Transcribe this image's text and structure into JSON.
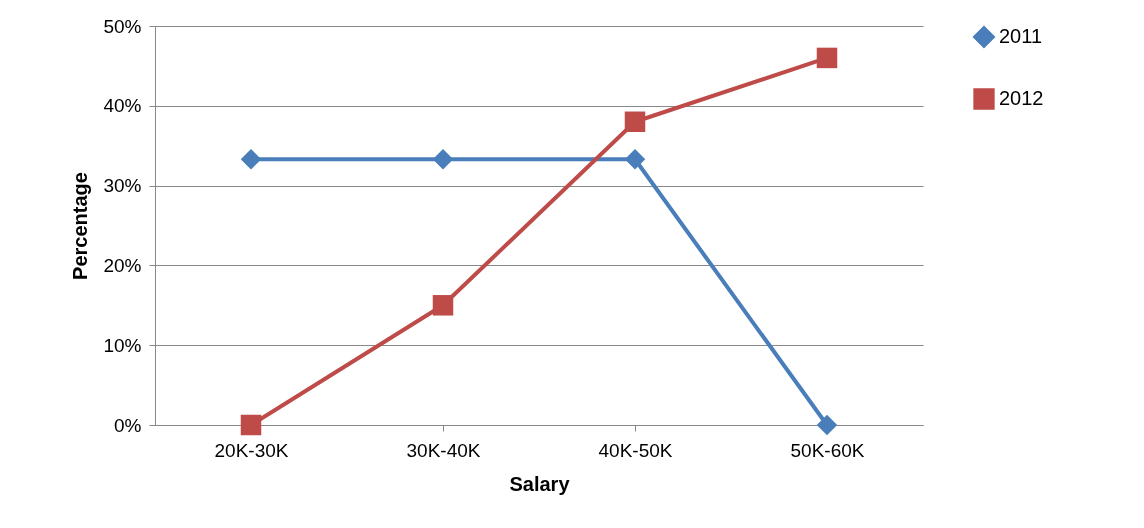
{
  "chart_data": {
    "type": "line",
    "xlabel": "Salary",
    "ylabel": "Percentage",
    "categories": [
      "20K-30K",
      "30K-40K",
      "40K-50K",
      "50K-60K"
    ],
    "series": [
      {
        "name": "2011",
        "color": "#4a7ebb",
        "marker": "diamond",
        "values": [
          33.3,
          33.3,
          33.3,
          0
        ]
      },
      {
        "name": "2012",
        "color": "#be4b48",
        "marker": "square",
        "values": [
          0,
          15,
          38,
          46
        ]
      }
    ],
    "ylim": [
      0,
      50
    ],
    "yticks": [
      {
        "value": 0,
        "label": "0%"
      },
      {
        "value": 10,
        "label": "10%"
      },
      {
        "value": 20,
        "label": "20%"
      },
      {
        "value": 30,
        "label": "30%"
      },
      {
        "value": 40,
        "label": "40%"
      },
      {
        "value": 50,
        "label": "50%"
      }
    ],
    "grid": "y",
    "legend": "right"
  }
}
